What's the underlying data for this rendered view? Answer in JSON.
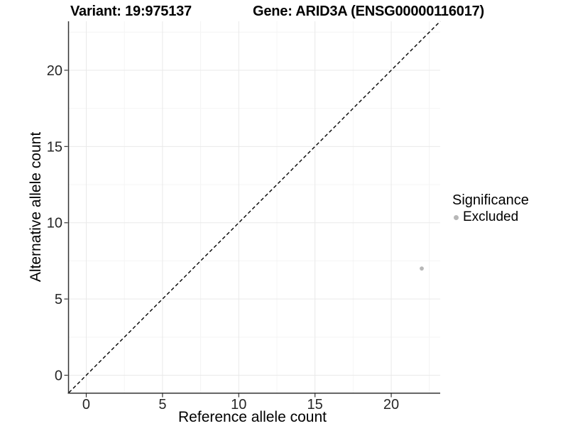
{
  "chart_data": {
    "type": "scatter",
    "title_left": "Variant: 19:975137",
    "title_right": "Gene: ARID3A (ENSG00000116017)",
    "xlabel": "Reference allele count",
    "ylabel": "Alternative allele count",
    "xlim": [
      -1.14,
      23.21
    ],
    "ylim": [
      -1.14,
      23.21
    ],
    "x_major_ticks": [
      0,
      5,
      10,
      15,
      20
    ],
    "y_major_ticks": [
      0,
      5,
      10,
      15,
      20
    ],
    "x_minor_ticks": [
      2.5,
      7.5,
      12.5,
      17.5,
      22.5
    ],
    "y_minor_ticks": [
      2.5,
      7.5,
      12.5,
      17.5,
      22.5
    ],
    "grid": "major+minor",
    "reference_line": {
      "kind": "identity y=x",
      "style": "dashed",
      "color": "#000000"
    },
    "series": [
      {
        "name": "Excluded",
        "color": "#b7b7b7",
        "points": [
          {
            "x": 22,
            "y": 7
          }
        ]
      }
    ],
    "legend": {
      "title": "Significance",
      "position": "right",
      "items": [
        {
          "label": "Excluded",
          "color": "#b7b7b7"
        }
      ]
    },
    "colors": {
      "background": "#ffffff",
      "grid_major": "#e9e9e9",
      "grid_minor": "#f4f4f4",
      "axis_line": "#333333",
      "tick_mark": "#333333",
      "tick_text": "#262626",
      "title_text": "#000000"
    }
  }
}
